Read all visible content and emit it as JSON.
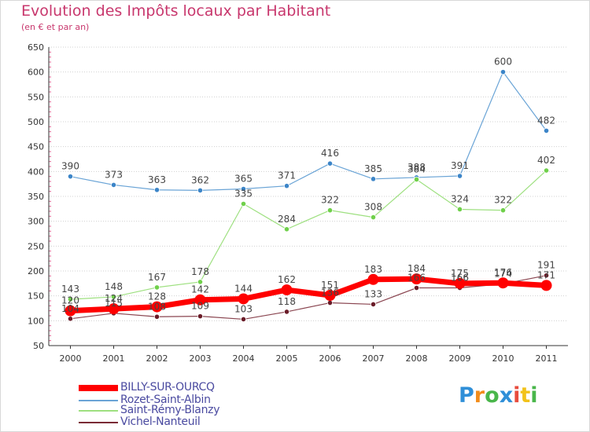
{
  "chart_data": {
    "type": "line",
    "title": "Evolution des Impôts locaux par Habitant",
    "subtitle": "(en € et par an)",
    "x": [
      "2000",
      "2001",
      "2002",
      "2003",
      "2004",
      "2005",
      "2006",
      "2007",
      "2008",
      "2009",
      "2010",
      "2011"
    ],
    "ylim": [
      50,
      650
    ],
    "yticks": [
      50,
      100,
      150,
      200,
      250,
      300,
      350,
      400,
      450,
      500,
      550,
      600,
      650
    ],
    "grid": "horizontal dotted",
    "legend": "bottom-left",
    "series": [
      {
        "name": "BILLY-SUR-OURCQ",
        "color": "#ff0000",
        "values": [
          120,
          124,
          128,
          142,
          144,
          162,
          151,
          183,
          184,
          175,
          176,
          171
        ]
      },
      {
        "name": "Rozet-Saint-Albin",
        "color": "#6aa4d6",
        "values": [
          390,
          373,
          363,
          362,
          365,
          371,
          416,
          385,
          388,
          391,
          600,
          482
        ]
      },
      {
        "name": "Saint-Rémy-Blanzy",
        "color": "#9ee080",
        "values": [
          143,
          148,
          167,
          178,
          335,
          284,
          322,
          308,
          384,
          324,
          322,
          402
        ]
      },
      {
        "name": "Vichel-Nanteuil",
        "color": "#7a2a35",
        "values": [
          104,
          115,
          108,
          109,
          103,
          118,
          136,
          133,
          166,
          166,
          174,
          191
        ]
      }
    ],
    "labels": [
      {
        "series": 0,
        "text": [
          "120",
          "124",
          "128",
          "142",
          "144",
          "162",
          "151",
          "183",
          "184",
          "175",
          "176",
          "171"
        ]
      },
      {
        "series": 1,
        "text": [
          "390",
          "373",
          "363",
          "362",
          "365",
          "371",
          "416",
          "385",
          "388",
          "391",
          "600",
          "482"
        ]
      },
      {
        "series": 2,
        "text": [
          "143",
          "148",
          "167",
          "178",
          "335",
          "284",
          "322",
          "308",
          "384",
          "324",
          "322",
          "402"
        ]
      },
      {
        "series": 3,
        "text": [
          "104",
          "115",
          "108",
          "109",
          "103",
          "118",
          "136",
          "133",
          "166",
          "166",
          "174",
          "191"
        ]
      }
    ]
  },
  "logo": {
    "text": "Proxiti"
  }
}
